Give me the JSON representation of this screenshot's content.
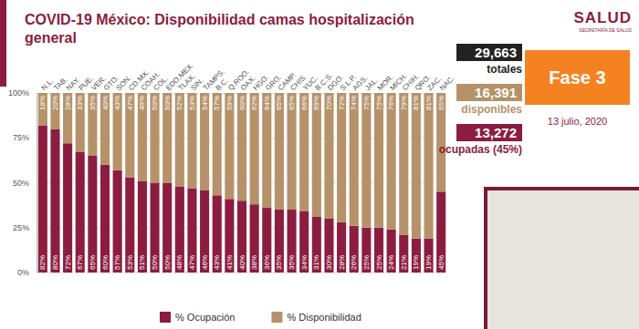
{
  "chart_data": {
    "type": "bar",
    "title": "COVID-19 México: Disponibilidad camas hospitalización general",
    "categories": [
      "N.L.",
      "TAB.",
      "NAY.",
      "PUE.",
      "VER.",
      "GTO.",
      "SON.",
      "CD.MX.",
      "COAH.",
      "COL.",
      "EDO.MEX.",
      "TLAX.",
      "SIN.",
      "TAMPS.",
      "B.C.",
      "Q.ROO.",
      "OAX.",
      "HGO.",
      "GRO.",
      "CAMP.",
      "CHIS.",
      "YUC.",
      "B.C.S.",
      "DGO.",
      "S.L.P.",
      "AGS.",
      "JAL.",
      "MOR.",
      "MICH.",
      "CHIH.",
      "QRO.",
      "ZAC.",
      "NAC."
    ],
    "series": [
      {
        "name": "% Ocupación",
        "color": "#8c1d40",
        "values": [
          82,
          80,
          72,
          67,
          65,
          60,
          57,
          53,
          51,
          50,
          50,
          48,
          47,
          46,
          43,
          41,
          40,
          38,
          36,
          35,
          35,
          34,
          31,
          30,
          28,
          26,
          25,
          25,
          24,
          21,
          19,
          19,
          45
        ],
        "value_labels": [
          "82%",
          "80%",
          "72%",
          "67%",
          "65%",
          "60%",
          "57%",
          "53%",
          "51%",
          "50%",
          "50%",
          "48%",
          "47%",
          "46%",
          "43%",
          "41%",
          "40%",
          "38%",
          "36%",
          "35%",
          "35%",
          "34%",
          "31%",
          "30%",
          "28%",
          "26%",
          "25%",
          "25%",
          "24%",
          "21%",
          "19%",
          "19%",
          "45%"
        ]
      },
      {
        "name": "% Disponibilidad",
        "color": "#b5926a",
        "values": [
          18,
          20,
          28,
          33,
          35,
          40,
          43,
          47,
          49,
          50,
          50,
          52,
          53,
          54,
          57,
          59,
          60,
          62,
          64,
          65,
          65,
          66,
          69,
          70,
          72,
          74,
          75,
          75,
          76,
          79,
          81,
          81,
          55
        ],
        "value_labels": [
          "18%",
          "20%",
          "28%",
          "33%",
          "35%",
          "40%",
          "43%",
          "47%",
          "49%",
          "50%",
          "50%",
          "52%",
          "53%",
          "54%",
          "57%",
          "59%",
          "60%",
          "62%",
          "64%",
          "65%",
          "65%",
          "66%",
          "69%",
          "70%",
          "72%",
          "74%",
          "75%",
          "75%",
          "76%",
          "79%",
          "81%",
          "81%",
          "55%"
        ]
      }
    ],
    "ylim": [
      0,
      100
    ],
    "yticks": [
      {
        "value": 0,
        "label": "0%"
      },
      {
        "value": 25,
        "label": "25%"
      },
      {
        "value": 50,
        "label": "50%"
      },
      {
        "value": 75,
        "label": "75%"
      },
      {
        "value": 100,
        "label": "100%"
      }
    ],
    "stacked": true,
    "data_labels": true,
    "grid": true,
    "legend": "bottom"
  },
  "summary": [
    {
      "value": "29,663",
      "label": "totales",
      "color": "#222222"
    },
    {
      "value": "16,391",
      "label": "disponibles",
      "color": "#b5926a"
    },
    {
      "value": "13,272",
      "label": "ocupadas (45%)",
      "color": "#8c1d40"
    }
  ],
  "phase": "Fase 3",
  "date": "13 julio, 2020",
  "logo": {
    "text": "SALUD",
    "subtext": "SECRETARÍA DE SALUD"
  }
}
